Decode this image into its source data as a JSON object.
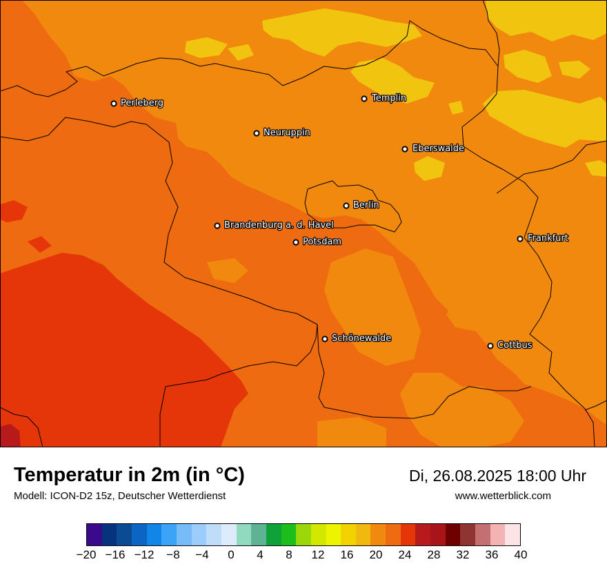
{
  "title": "Temperatur in 2m (in °C)",
  "model": "Modell: ICON-D2 15z, Deutscher Wetterdienst",
  "datetime": "Di, 26.08.2025 18:00 Uhr",
  "website": "www.wetterblick.com",
  "colors": {
    "band_14_16": "#EED800",
    "band_16_18": "#F1C40F",
    "band_18_20": "#F2890F",
    "band_20_22": "#EE6B10",
    "band_22_24": "#E5360A",
    "band_24_26": "#B71A1A",
    "border": "#000000"
  },
  "legend": {
    "colors": [
      "#3A0A8C",
      "#07337E",
      "#0B4B93",
      "#0A66C2",
      "#1285E8",
      "#3BA4F6",
      "#77BBF8",
      "#9ACDFB",
      "#BFDDF9",
      "#DDEBFA",
      "#91DAC0",
      "#5EB394",
      "#10A23A",
      "#1DBE1B",
      "#9AD70B",
      "#D3E800",
      "#EEF400",
      "#F2D200",
      "#F1B90F",
      "#F2890F",
      "#EE6B10",
      "#E5360A",
      "#B71A1A",
      "#A91418",
      "#6E0000",
      "#8F3333",
      "#C47070",
      "#F3B3B3",
      "#FBE3E6"
    ],
    "tick_labels": [
      "−20",
      "−16",
      "−12",
      "−8",
      "−4",
      "0",
      "4",
      "8",
      "12",
      "16",
      "20",
      "24",
      "28",
      "32",
      "36",
      "40"
    ]
  },
  "cities": [
    {
      "id": "perleberg",
      "name": "Perleberg"
    },
    {
      "id": "templin",
      "name": "Templin"
    },
    {
      "id": "neuruppin",
      "name": "Neuruppin"
    },
    {
      "id": "eberswalde",
      "name": "Eberswalde"
    },
    {
      "id": "berlin",
      "name": "Berlin"
    },
    {
      "id": "brandenburg",
      "name": "Brandenburg a. d. Havel"
    },
    {
      "id": "potsdam",
      "name": "Potsdam"
    },
    {
      "id": "frankfurt",
      "name": "Frankfurt"
    },
    {
      "id": "schoenewalde",
      "name": "Schönewalde"
    },
    {
      "id": "cottbus",
      "name": "Cottbus"
    }
  ]
}
